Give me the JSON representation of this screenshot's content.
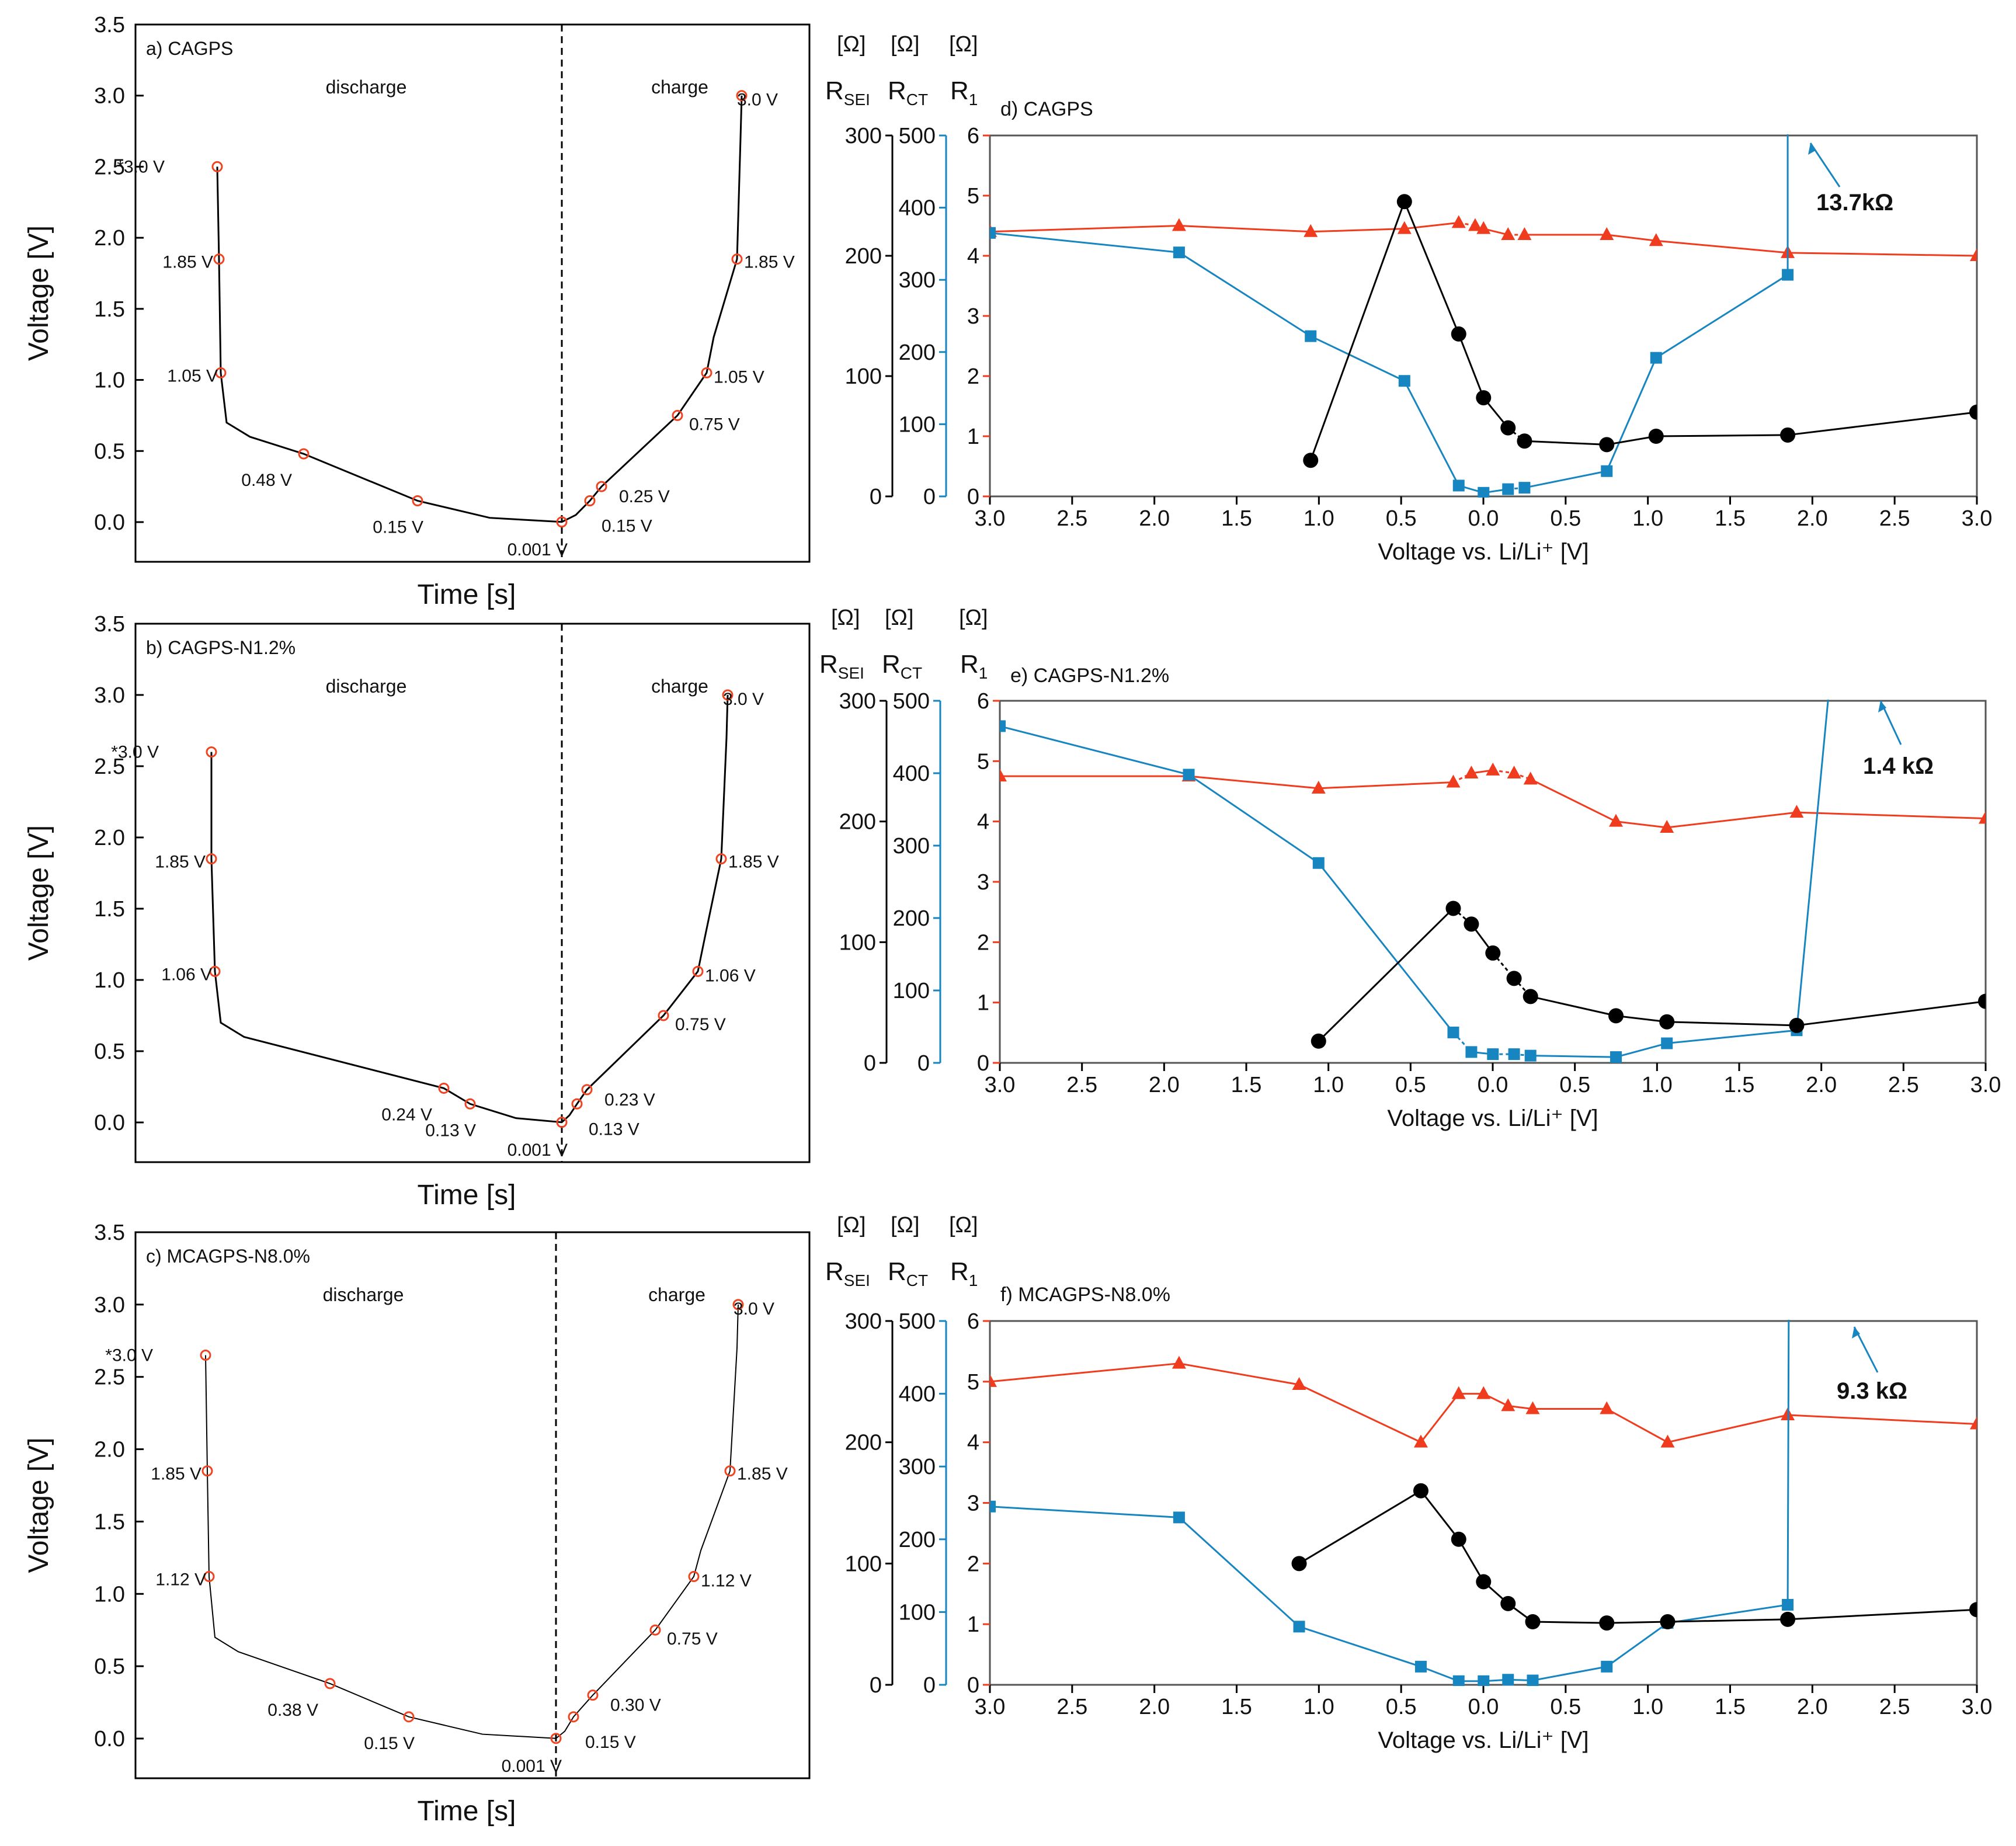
{
  "colors": {
    "black": "#000000",
    "blue": "#1785c0",
    "red": "#f03c1e",
    "marker": "#ee4422"
  },
  "chart_data": [
    {
      "type": "line",
      "title": "a) CAGPS",
      "xlabel": "Time [s]",
      "ylabel": "Voltage [V]",
      "ylim": [
        0,
        3.5
      ],
      "yticks": [
        "0.0",
        "0.5",
        "1.0",
        "1.5",
        "2.0",
        "2.5",
        "3.0",
        "3.5"
      ],
      "region_labels": [
        "discharge",
        "charge"
      ],
      "discharge_points": [
        {
          "v": 2.5,
          "label": "*3.0 V"
        },
        {
          "v": 1.85,
          "label": "1.85 V"
        },
        {
          "v": 1.05,
          "label": "1.05 V"
        },
        {
          "v": 0.48,
          "label": "0.48 V"
        },
        {
          "v": 0.15,
          "label": "0.15 V"
        },
        {
          "v": 0.001,
          "label": "0.001 V"
        }
      ],
      "charge_points": [
        {
          "v": 0.15,
          "label": "0.15 V"
        },
        {
          "v": 0.25,
          "label": "0.25 V"
        },
        {
          "v": 0.75,
          "label": "0.75 V"
        },
        {
          "v": 1.05,
          "label": "1.05 V"
        },
        {
          "v": 1.85,
          "label": "1.85 V"
        },
        {
          "v": 3.0,
          "label": "3.0 V"
        }
      ]
    },
    {
      "type": "line",
      "title": "b) CAGPS-N1.2%",
      "xlabel": "Time [s]",
      "ylabel": "Voltage [V]",
      "ylim": [
        0,
        3.5
      ],
      "yticks": [
        "0.0",
        "0.5",
        "1.0",
        "1.5",
        "2.0",
        "2.5",
        "3.0",
        "3.5"
      ],
      "region_labels": [
        "discharge",
        "charge"
      ],
      "discharge_points": [
        {
          "v": 2.6,
          "label": "*3.0 V"
        },
        {
          "v": 1.85,
          "label": "1.85 V"
        },
        {
          "v": 1.06,
          "label": "1.06 V"
        },
        {
          "v": 0.24,
          "label": "0.24 V"
        },
        {
          "v": 0.13,
          "label": "0.13 V"
        },
        {
          "v": 0.001,
          "label": "0.001 V"
        }
      ],
      "charge_points": [
        {
          "v": 0.13,
          "label": "0.13 V"
        },
        {
          "v": 0.23,
          "label": "0.23 V"
        },
        {
          "v": 0.75,
          "label": "0.75 V"
        },
        {
          "v": 1.06,
          "label": "1.06 V"
        },
        {
          "v": 1.85,
          "label": "1.85 V"
        },
        {
          "v": 3.0,
          "label": "3.0 V"
        }
      ]
    },
    {
      "type": "line",
      "title": "c) MCAGPS-N8.0%",
      "xlabel": "Time [s]",
      "ylabel": "Voltage [V]",
      "ylim": [
        0,
        3.5
      ],
      "yticks": [
        "0.0",
        "0.5",
        "1.0",
        "1.5",
        "2.0",
        "2.5",
        "3.0",
        "3.5"
      ],
      "region_labels": [
        "discharge",
        "charge"
      ],
      "discharge_points": [
        {
          "v": 2.65,
          "label": "*3.0 V"
        },
        {
          "v": 1.85,
          "label": "1.85 V"
        },
        {
          "v": 1.12,
          "label": "1.12 V"
        },
        {
          "v": 0.38,
          "label": "0.38 V"
        },
        {
          "v": 0.15,
          "label": "0.15 V"
        },
        {
          "v": 0.001,
          "label": "0.001 V"
        }
      ],
      "charge_points": [
        {
          "v": 0.15,
          "label": "0.15 V"
        },
        {
          "v": 0.3,
          "label": "0.30 V"
        },
        {
          "v": 0.75,
          "label": "0.75 V"
        },
        {
          "v": 1.12,
          "label": "1.12 V"
        },
        {
          "v": 1.85,
          "label": "1.85 V"
        },
        {
          "v": 3.0,
          "label": "3.0 V"
        }
      ]
    },
    {
      "type": "line",
      "title": "d) CAGPS",
      "xlabel": "Voltage vs. Li/Li⁺ [V]",
      "xticks": [
        "3.0",
        "2.5",
        "2.0",
        "1.5",
        "1.0",
        "0.5",
        "0.0",
        "0.5",
        "1.0",
        "1.5",
        "2.0",
        "2.5",
        "3.0"
      ],
      "axis_titles": {
        "sei": "RSEI",
        "ct": "RCT",
        "r1": "R1",
        "unit": "[Ω]"
      },
      "axes": {
        "sei": {
          "range": [
            0,
            300
          ],
          "ticks": [
            "0",
            "100",
            "200",
            "300"
          ]
        },
        "ct": {
          "range": [
            0,
            500
          ],
          "ticks": [
            "0",
            "100",
            "200",
            "300",
            "400",
            "500"
          ]
        },
        "r1": {
          "range": [
            0,
            6
          ],
          "ticks": [
            "0",
            "1",
            "2",
            "3",
            "4",
            "5",
            "6"
          ]
        }
      },
      "annotation": "13.7kΩ",
      "series": [
        {
          "name": "R1",
          "axis": "r1",
          "x": [
            -3.0,
            -1.85,
            -1.05,
            -0.48,
            -0.15,
            -0.05,
            0.001,
            0.15,
            0.25,
            0.75,
            1.05,
            1.85,
            3.0
          ],
          "values": [
            4.4,
            4.5,
            4.4,
            4.45,
            4.55,
            4.5,
            4.45,
            4.35,
            4.35,
            4.35,
            4.25,
            4.05,
            4.0
          ]
        },
        {
          "name": "RCT",
          "axis": "ct",
          "x": [
            -3.0,
            -1.85,
            -1.05,
            -0.48,
            -0.15,
            0.001,
            0.15,
            0.25,
            0.75,
            1.05,
            1.85,
            1.85
          ],
          "values": [
            365,
            338,
            222,
            160,
            15,
            5,
            10,
            12,
            35,
            192,
            307,
            2000
          ]
        },
        {
          "name": "RSEI",
          "axis": "sei",
          "x": [
            -1.05,
            -0.48,
            -0.15,
            0.001,
            0.15,
            0.25,
            0.75,
            1.05,
            1.85,
            3.0
          ],
          "values": [
            30,
            245,
            135,
            82,
            57,
            46,
            43,
            50,
            51,
            70
          ]
        }
      ]
    },
    {
      "type": "line",
      "title": "e) CAGPS-N1.2%",
      "xlabel": "Voltage vs. Li/Li⁺ [V]",
      "xticks": [
        "3.0",
        "2.5",
        "2.0",
        "1.5",
        "1.0",
        "0.5",
        "0.0",
        "0.5",
        "1.0",
        "1.5",
        "2.0",
        "2.5",
        "3.0"
      ],
      "axis_titles": {
        "sei": "RSEI",
        "ct": "RCT",
        "r1": "R1",
        "unit": "[Ω]"
      },
      "axes": {
        "sei": {
          "range": [
            0,
            300
          ],
          "ticks": [
            "0",
            "100",
            "200",
            "300"
          ]
        },
        "ct": {
          "range": [
            0,
            500
          ],
          "ticks": [
            "0",
            "100",
            "200",
            "300",
            "400",
            "500"
          ]
        },
        "r1": {
          "range": [
            0,
            6
          ],
          "ticks": [
            "0",
            "1",
            "2",
            "3",
            "4",
            "5",
            "6"
          ]
        }
      },
      "annotation": "1.4 kΩ",
      "series": [
        {
          "name": "R1",
          "axis": "r1",
          "x": [
            -3.0,
            -1.85,
            -1.06,
            -0.24,
            -0.13,
            0.001,
            0.13,
            0.23,
            0.75,
            1.06,
            1.85,
            3.0
          ],
          "values": [
            4.75,
            4.75,
            4.55,
            4.65,
            4.8,
            4.85,
            4.8,
            4.7,
            4.0,
            3.9,
            4.15,
            4.05
          ]
        },
        {
          "name": "RCT",
          "axis": "ct",
          "x": [
            -3.0,
            -1.85,
            -1.06,
            -0.24,
            -0.13,
            0.001,
            0.13,
            0.23,
            0.75,
            1.06,
            1.85,
            2.25
          ],
          "values": [
            465,
            398,
            276,
            42,
            15,
            12,
            12,
            10,
            8,
            27,
            45,
            1000
          ]
        },
        {
          "name": "RSEI",
          "axis": "sei",
          "x": [
            -1.06,
            -0.24,
            -0.13,
            0.001,
            0.13,
            0.23,
            0.75,
            1.06,
            1.85,
            3.0
          ],
          "values": [
            18,
            128,
            115,
            91,
            70,
            55,
            39,
            34,
            31,
            51
          ]
        }
      ]
    },
    {
      "type": "line",
      "title": "f) MCAGPS-N8.0%",
      "xlabel": "Voltage vs. Li/Li⁺ [V]",
      "xticks": [
        "3.0",
        "2.5",
        "2.0",
        "1.5",
        "1.0",
        "0.5",
        "0.0",
        "0.5",
        "1.0",
        "1.5",
        "2.0",
        "2.5",
        "3.0"
      ],
      "axis_titles": {
        "sei": "RSEI",
        "ct": "RCT",
        "r1": "R1",
        "unit": "[Ω]"
      },
      "axes": {
        "sei": {
          "range": [
            0,
            300
          ],
          "ticks": [
            "0",
            "100",
            "200",
            "300"
          ]
        },
        "ct": {
          "range": [
            0,
            500
          ],
          "ticks": [
            "0",
            "100",
            "200",
            "300",
            "400",
            "500"
          ]
        },
        "r1": {
          "range": [
            0,
            6
          ],
          "ticks": [
            "0",
            "1",
            "2",
            "3",
            "4",
            "5",
            "6"
          ]
        }
      },
      "annotation": "9.3 kΩ",
      "series": [
        {
          "name": "R1",
          "axis": "r1",
          "x": [
            -3.0,
            -1.85,
            -1.12,
            -0.38,
            -0.15,
            0.001,
            0.15,
            0.3,
            0.75,
            1.12,
            1.85,
            3.0
          ],
          "values": [
            5.0,
            5.3,
            4.95,
            4.0,
            4.8,
            4.8,
            4.6,
            4.55,
            4.55,
            4.0,
            4.45,
            4.3
          ]
        },
        {
          "name": "RCT",
          "axis": "ct",
          "x": [
            -3.0,
            -1.85,
            -1.12,
            -0.38,
            -0.15,
            0.001,
            0.15,
            0.3,
            0.75,
            1.12,
            1.85,
            1.88
          ],
          "values": [
            245,
            230,
            80,
            25,
            5,
            5,
            7,
            6,
            25,
            85,
            110,
            2000
          ]
        },
        {
          "name": "RSEI",
          "axis": "sei",
          "x": [
            -1.12,
            -0.38,
            -0.15,
            0.001,
            0.15,
            0.3,
            0.75,
            1.12,
            1.85,
            3.0
          ],
          "values": [
            100,
            160,
            120,
            85,
            67,
            52,
            51,
            52,
            54,
            62
          ]
        }
      ]
    }
  ]
}
